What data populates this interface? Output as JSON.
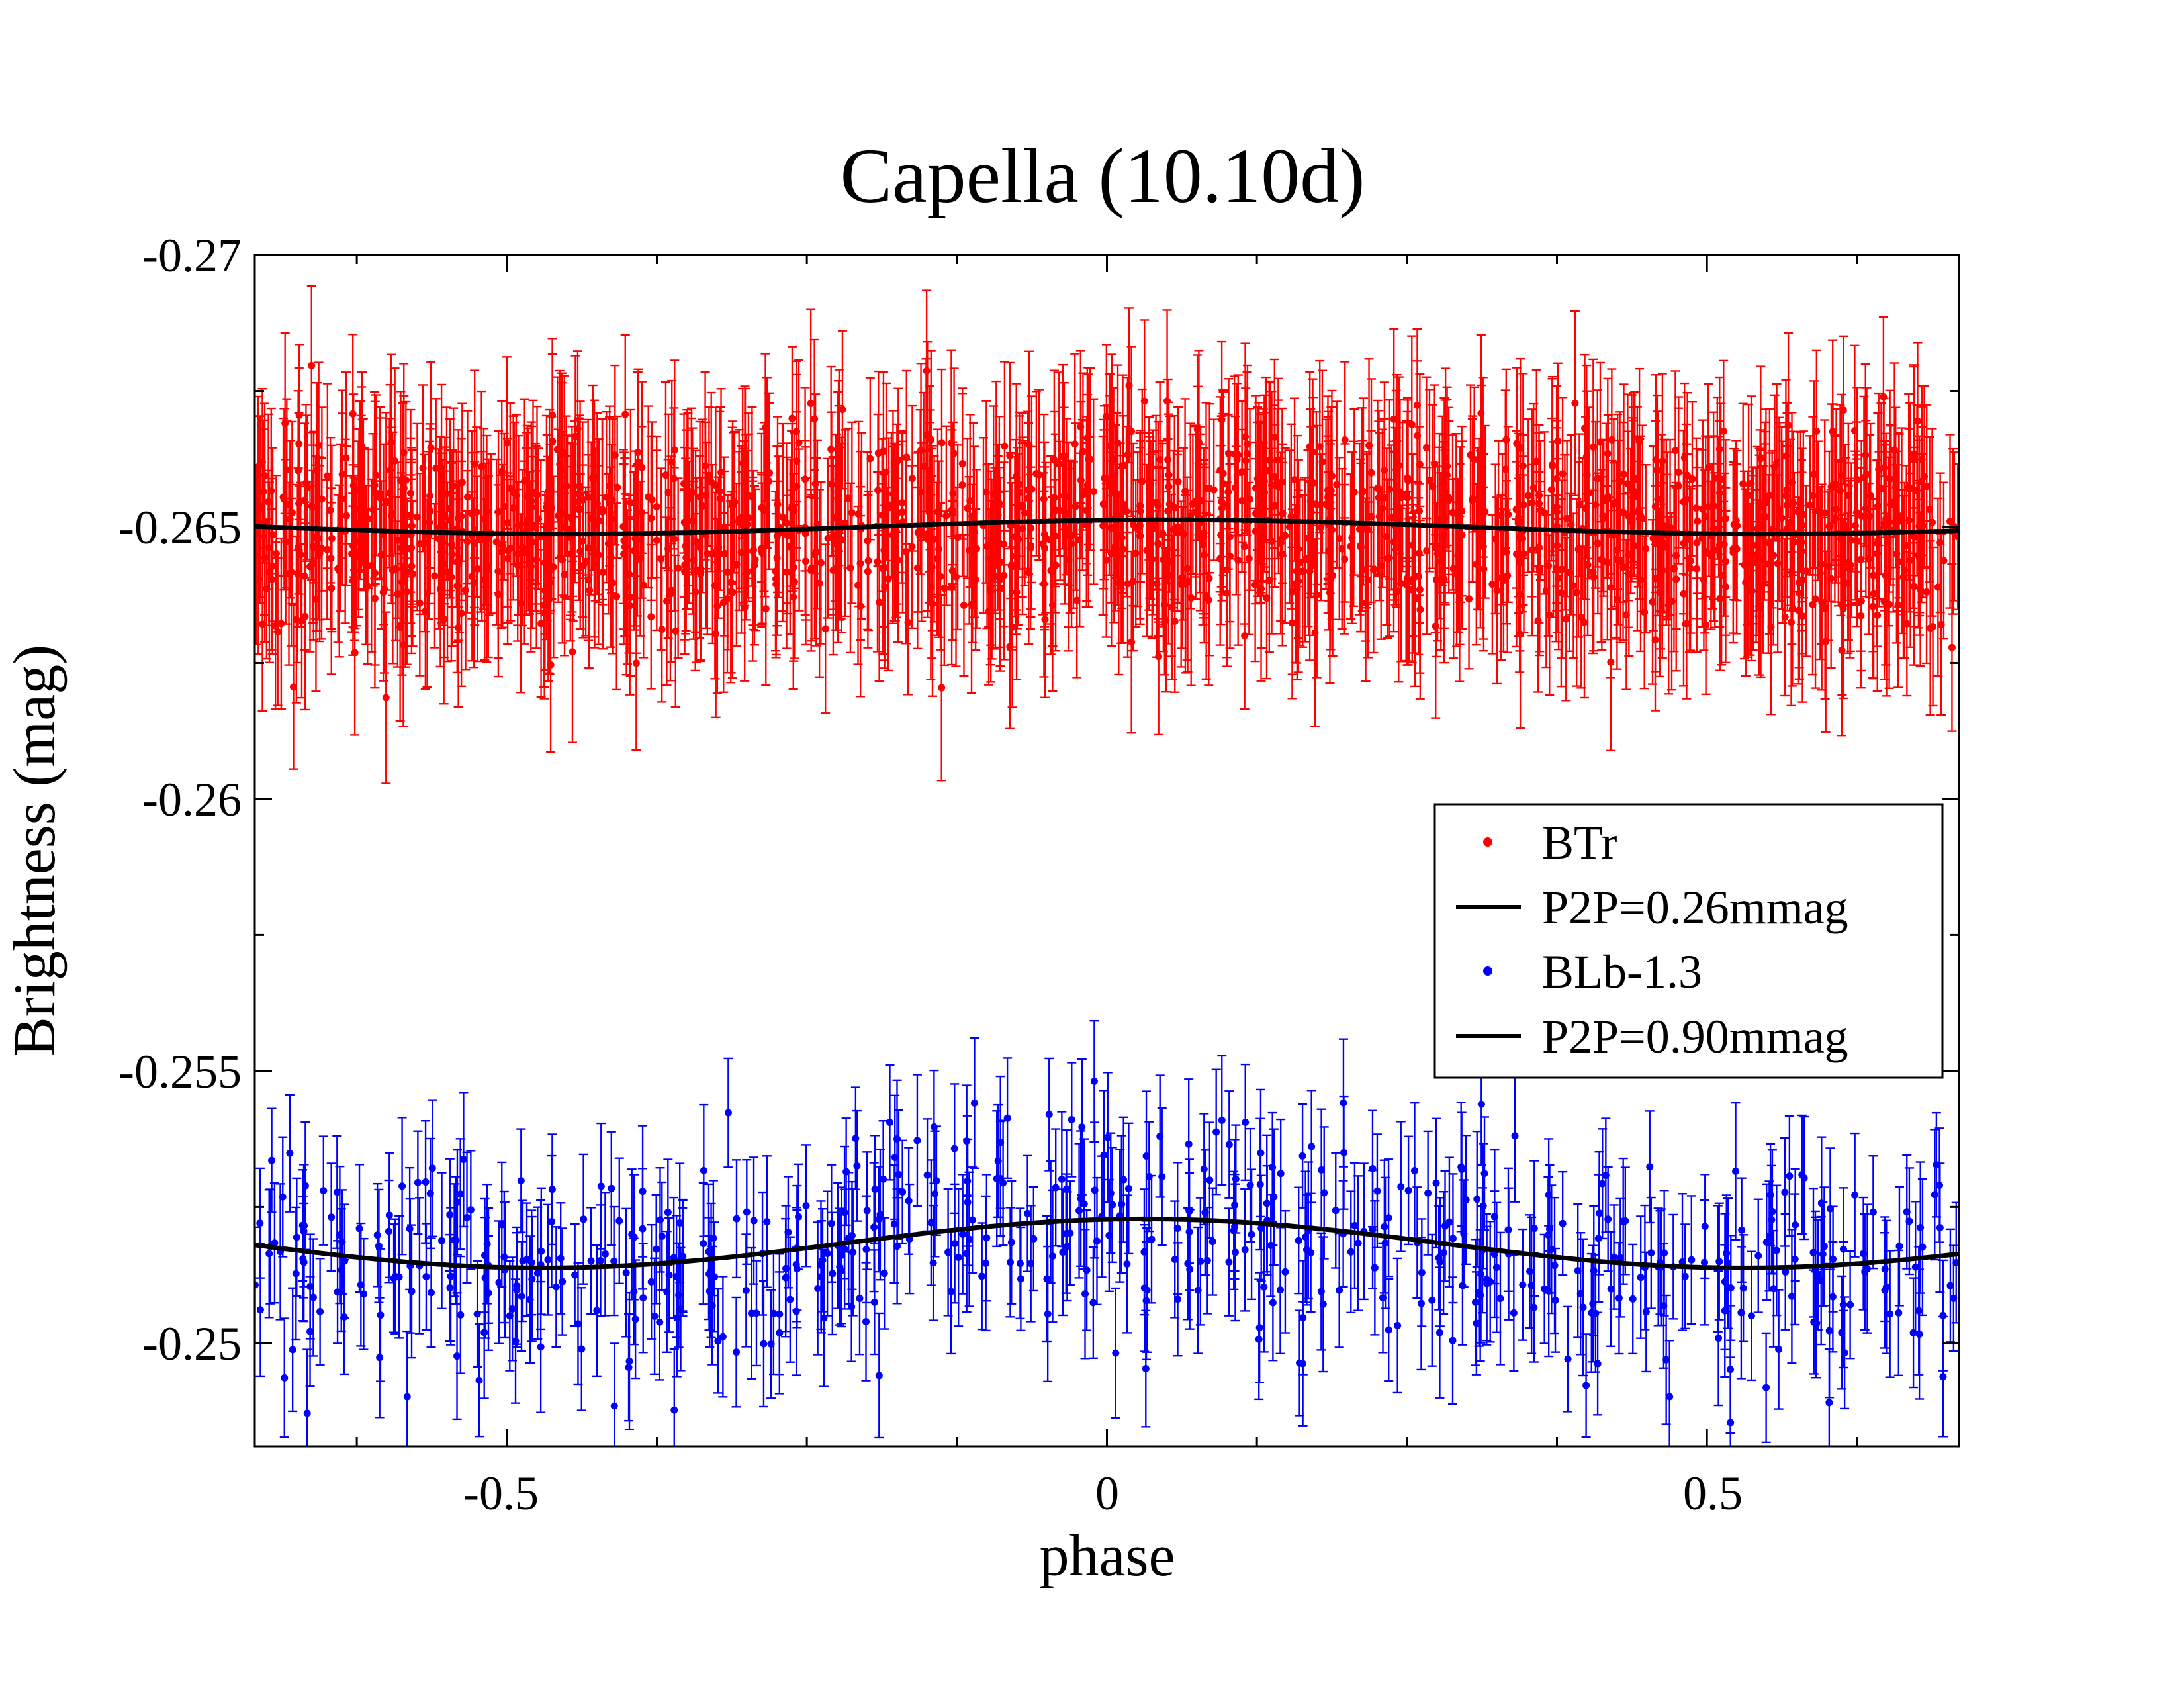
{
  "chart_data": {
    "type": "scatter",
    "title": "Capella (10.10d)",
    "xlabel": "phase",
    "ylabel": "Brightness (mag)",
    "xlim": [
      -0.71,
      0.71
    ],
    "ylim": [
      -0.27,
      -0.2481
    ],
    "y_inverted": true,
    "x_ticks": [
      -0.5,
      0,
      0.5
    ],
    "x_tick_labels": [
      "-0.5",
      "0",
      "0.5"
    ],
    "y_ticks": [
      -0.27,
      -0.265,
      -0.26,
      -0.255,
      -0.25
    ],
    "y_tick_labels": [
      "-0.27",
      "-0.265",
      "-0.26",
      "-0.255",
      "-0.25"
    ],
    "grid": false,
    "legend_position": "right-middle",
    "series": [
      {
        "name": "BTr",
        "kind": "points-with-errorbars",
        "color": "#ff0000",
        "mean": -0.265,
        "scatter": 0.0009,
        "errorbar": 0.0015,
        "n_points": 1450
      },
      {
        "name": "P2P=0.26mmag",
        "kind": "fit-line",
        "color": "#000000",
        "mean": -0.265,
        "amplitude": 0.00013,
        "phase_of_max_brightness": -0.45
      },
      {
        "name": "BLb-1.3",
        "kind": "points-with-errorbars",
        "color": "#0000ff",
        "mean": -0.2518,
        "scatter": 0.001,
        "errorbar": 0.0011,
        "n_points": 560
      },
      {
        "name": "P2P=0.90mmag",
        "kind": "fit-line",
        "color": "#000000",
        "mean": -0.25183,
        "amplitude": 0.00045,
        "phase_of_max_brightness": -0.47
      }
    ]
  }
}
